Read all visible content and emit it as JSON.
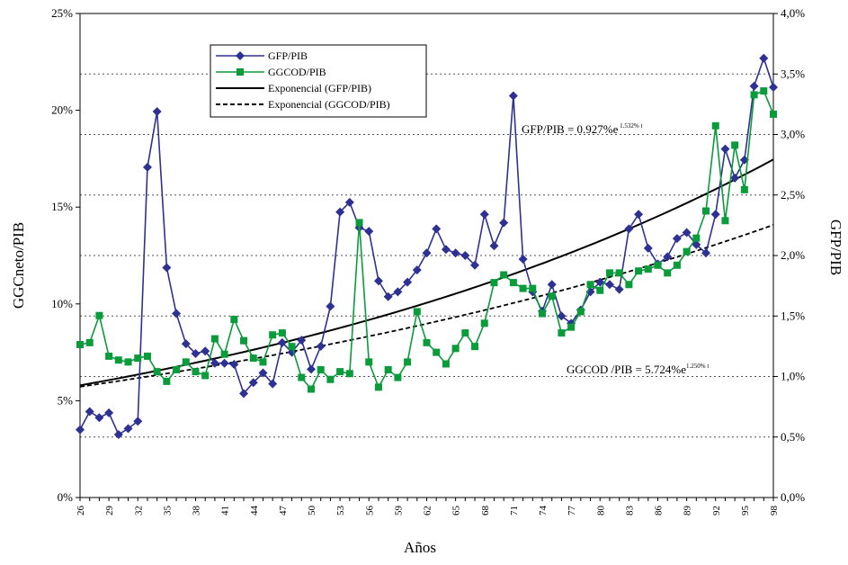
{
  "chart_data": {
    "type": "line",
    "xlabel": "Años",
    "ylabel_left": "GGCneto/PIB",
    "ylabel_right": "GFP/PIB",
    "ylim_left": [
      0,
      25
    ],
    "ylim_right": [
      0,
      4.0
    ],
    "left_ticks": [
      "0%",
      "5%",
      "10%",
      "15%",
      "20%",
      "25%"
    ],
    "right_ticks": [
      "0,0%",
      "0,5%",
      "1,0%",
      "1,5%",
      "2,0%",
      "2,5%",
      "3,0%",
      "3,5%",
      "4,0%"
    ],
    "x_ticks": [
      "26",
      "29",
      "32",
      "35",
      "38",
      "41",
      "44",
      "47",
      "50",
      "53",
      "56",
      "59",
      "62",
      "65",
      "68",
      "71",
      "74",
      "77",
      "80",
      "83",
      "86",
      "89",
      "92",
      "95",
      "98"
    ],
    "x": [
      26,
      27,
      28,
      29,
      30,
      31,
      32,
      33,
      34,
      35,
      36,
      37,
      38,
      39,
      40,
      41,
      42,
      43,
      44,
      45,
      46,
      47,
      48,
      49,
      50,
      51,
      52,
      53,
      54,
      55,
      56,
      57,
      58,
      59,
      60,
      61,
      62,
      63,
      64,
      65,
      66,
      67,
      68,
      69,
      70,
      71,
      72,
      73,
      74,
      75,
      76,
      77,
      78,
      79,
      80,
      81,
      82,
      83,
      84,
      85,
      86,
      87,
      88,
      89,
      90,
      91,
      92,
      93,
      94,
      95,
      96,
      97,
      98
    ],
    "grid": "horizontal dotted, right axis",
    "legend_position": "top-center",
    "series": [
      {
        "name": "GFP/PIB",
        "axis": "right",
        "color": "#2E3192",
        "marker": "diamond",
        "values": [
          0.56,
          0.71,
          0.66,
          0.7,
          0.52,
          0.57,
          0.63,
          2.73,
          3.19,
          1.9,
          1.52,
          1.27,
          1.19,
          1.21,
          1.11,
          1.11,
          1.1,
          0.86,
          0.95,
          1.03,
          0.94,
          1.28,
          1.2,
          1.3,
          1.06,
          1.25,
          1.58,
          2.36,
          2.44,
          2.23,
          2.2,
          1.79,
          1.66,
          1.7,
          1.78,
          1.88,
          2.02,
          2.22,
          2.05,
          2.02,
          2.0,
          1.92,
          2.34,
          2.08,
          2.27,
          3.32,
          1.97,
          1.7,
          1.54,
          1.76,
          1.5,
          1.44,
          1.55,
          1.7,
          1.78,
          1.76,
          1.72,
          2.22,
          2.34,
          2.06,
          1.93,
          1.99,
          2.14,
          2.19,
          2.09,
          2.02,
          2.34,
          2.88,
          2.64,
          2.79,
          3.4,
          3.63,
          3.39
        ]
      },
      {
        "name": "GGCOD/PIB",
        "axis": "left",
        "color": "#0A9B3A",
        "marker": "square",
        "values": [
          7.9,
          8.0,
          9.4,
          7.3,
          7.1,
          7.0,
          7.2,
          7.3,
          6.5,
          6.0,
          6.6,
          7.0,
          6.5,
          6.3,
          8.2,
          7.4,
          9.2,
          8.1,
          7.2,
          7.0,
          8.4,
          8.5,
          7.8,
          6.2,
          5.6,
          6.6,
          6.1,
          6.5,
          6.4,
          14.2,
          7.0,
          5.7,
          6.6,
          6.2,
          7.0,
          9.6,
          8.0,
          7.5,
          6.9,
          7.7,
          8.5,
          7.8,
          9.0,
          11.1,
          11.5,
          11.1,
          10.8,
          10.8,
          9.5,
          10.4,
          8.5,
          8.8,
          9.6,
          11.0,
          10.7,
          11.6,
          11.6,
          11.0,
          11.7,
          11.8,
          12.0,
          11.6,
          12.0,
          12.7,
          13.4,
          14.8,
          19.2,
          14.3,
          18.2,
          15.9,
          20.8,
          21.0,
          19.8
        ]
      },
      {
        "name": "Exponencial (GFP/PIB)",
        "axis": "right",
        "color": "#000000",
        "style": "solid",
        "start_value": 0.927,
        "growth_rate": 1.532
      },
      {
        "name": "Exponencial (GGCOD/PIB)",
        "axis": "left",
        "color": "#000000",
        "style": "dashed",
        "start_value": 5.724,
        "growth_rate": 1.25
      }
    ],
    "annotations": [
      {
        "id": "gfp",
        "base": "GFP/PIB = 0.927%e",
        "exp": " 1.532% t"
      },
      {
        "id": "ggcod",
        "base": "GGCOD /PIB = 5.724%e",
        "exp": "1.250% t"
      }
    ]
  }
}
